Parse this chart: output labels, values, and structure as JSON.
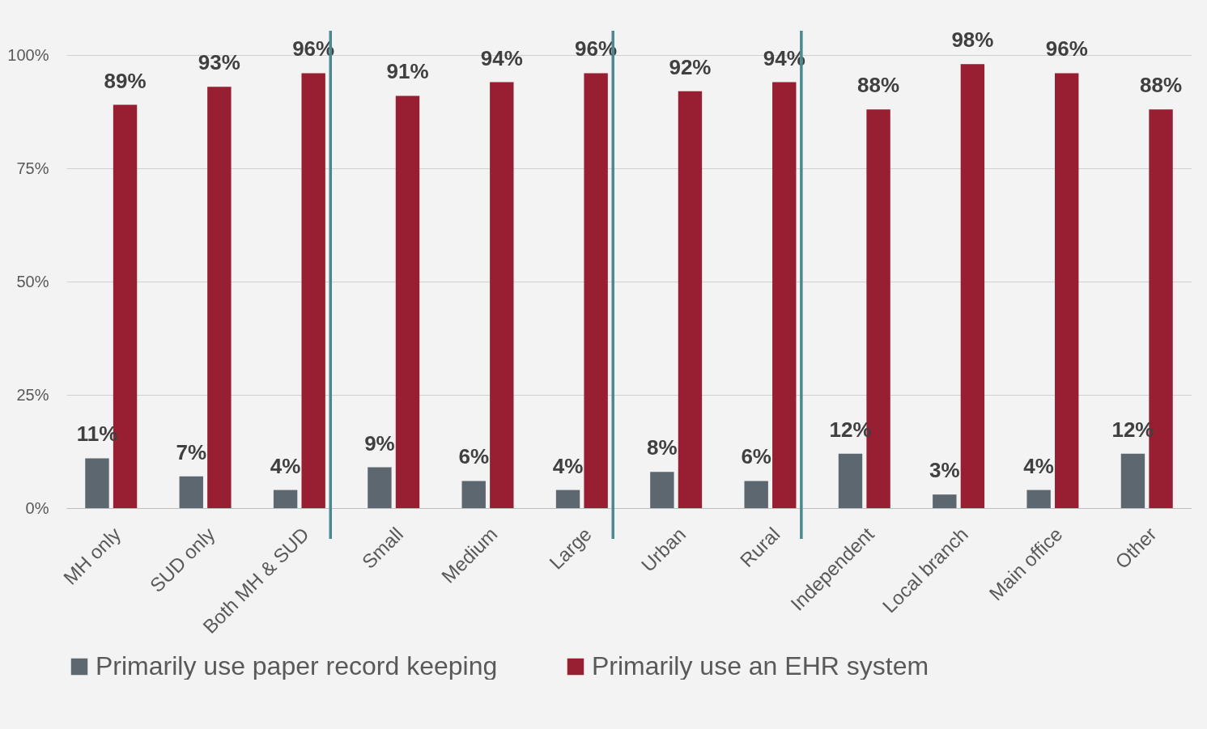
{
  "chart_data": {
    "type": "bar",
    "categories": [
      "MH only",
      "SUD only",
      "Both MH & SUD",
      "Small",
      "Medium",
      "Large",
      "Urban",
      "Rural",
      "Independent",
      "Local branch",
      "Main office",
      "Other"
    ],
    "series": [
      {
        "name": "Primarily use paper record keeping",
        "color": "#5d6770",
        "values": [
          11,
          7,
          4,
          9,
          6,
          4,
          8,
          6,
          12,
          3,
          4,
          12
        ]
      },
      {
        "name": "Primarily use an EHR system",
        "color": "#981e32",
        "values": [
          89,
          93,
          96,
          91,
          94,
          96,
          92,
          94,
          88,
          98,
          96,
          88
        ]
      }
    ],
    "value_labels": [
      [
        "11%",
        "7%",
        "4%",
        "9%",
        "6%",
        "4%",
        "8%",
        "6%",
        "12%",
        "3%",
        "4%",
        "12%"
      ],
      [
        "89%",
        "93%",
        "96%",
        "91%",
        "94%",
        "96%",
        "92%",
        "94%",
        "88%",
        "98%",
        "96%",
        "88%"
      ]
    ],
    "ylim": [
      0,
      100
    ],
    "yticks": [
      {
        "value": 0,
        "label": "0%"
      },
      {
        "value": 25,
        "label": "25%"
      },
      {
        "value": 50,
        "label": "50%"
      },
      {
        "value": 75,
        "label": "75%"
      },
      {
        "value": 100,
        "label": "100%"
      }
    ],
    "ref_lines": [
      {
        "axis": "x",
        "value": "Both MH & SUD",
        "color": "#4a8a8f"
      },
      {
        "axis": "x",
        "value": "Large",
        "color": "#4a8a8f"
      },
      {
        "axis": "x",
        "value": "Rural",
        "color": "#4a8a8f"
      }
    ],
    "grid": "y",
    "legend": "bottom"
  }
}
